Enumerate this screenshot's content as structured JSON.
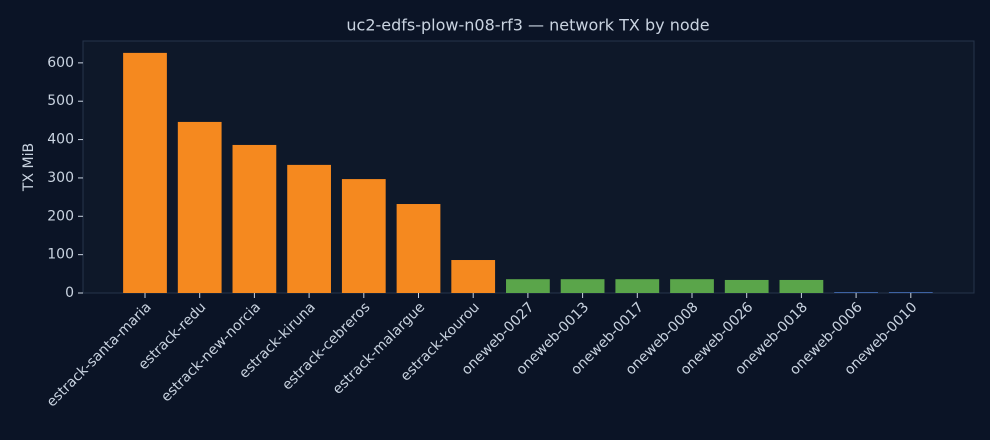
{
  "chart_data": {
    "type": "bar",
    "title": "uc2-edfs-plow-n08-rf3 — network TX by node",
    "y_label": "TX MiB",
    "categories": [
      "estrack-santa-maria",
      "estrack-redu",
      "estrack-new-norcia",
      "estrack-kiruna",
      "estrack-cebreros",
      "estrack-malargue",
      "estrack-kourou",
      "oneweb-0027",
      "oneweb-0013",
      "oneweb-0017",
      "oneweb-0008",
      "oneweb-0026",
      "oneweb-0018",
      "oneweb-0006",
      "oneweb-0010"
    ],
    "values": [
      626,
      446,
      386,
      334,
      297,
      232,
      86,
      36,
      36,
      36,
      36,
      34,
      34,
      2,
      2
    ],
    "colors": [
      "#f5891f",
      "#f5891f",
      "#f5891f",
      "#f5891f",
      "#f5891f",
      "#f5891f",
      "#f5891f",
      "#5aa54a",
      "#5aa54a",
      "#5aa54a",
      "#5aa54a",
      "#5aa54a",
      "#5aa54a",
      "#4c78c8",
      "#4c78c8"
    ],
    "ylim": [
      0,
      657
    ],
    "yticks": [
      0,
      100,
      200,
      300,
      400,
      500,
      600
    ],
    "grid": false
  }
}
